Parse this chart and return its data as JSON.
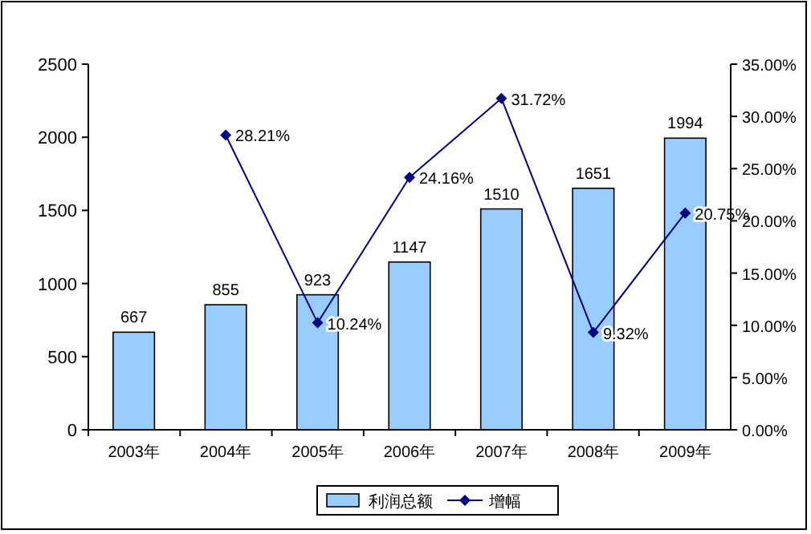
{
  "chart_data": {
    "type": "bar",
    "categories": [
      "2003年",
      "2004年",
      "2005年",
      "2006年",
      "2007年",
      "2008年",
      "2009年"
    ],
    "series": [
      {
        "name": "利润总额",
        "color": "#99ccff",
        "values": [
          667,
          855,
          923,
          1147,
          1510,
          1651,
          1994
        ],
        "value_labels": [
          "667",
          "855",
          "923",
          "1147",
          "1510",
          "1651",
          "1994"
        ]
      },
      {
        "name": "增幅",
        "type": "line",
        "axis": "y2",
        "color": "#000080",
        "marker": "diamond",
        "values": [
          null,
          28.21,
          10.24,
          24.16,
          31.72,
          9.32,
          20.75
        ],
        "value_labels": [
          null,
          "28.21%",
          "10.24%",
          "24.16%",
          "31.72%",
          "9.32%",
          "20.75%"
        ]
      }
    ],
    "ylim": [
      0,
      2500
    ],
    "yticks": [
      0,
      500,
      1000,
      1500,
      2000,
      2500
    ],
    "y2lim": [
      0,
      35
    ],
    "y2ticks": [
      {
        "value": 0,
        "label": "0.00%"
      },
      {
        "value": 5,
        "label": "5.00%"
      },
      {
        "value": 10,
        "label": "10.00%"
      },
      {
        "value": 15,
        "label": "15.00%"
      },
      {
        "value": 20,
        "label": "20.00%"
      },
      {
        "value": 25,
        "label": "25.00%"
      },
      {
        "value": 30,
        "label": "30.00%"
      },
      {
        "value": 35,
        "label": "35.00%"
      }
    ],
    "grid": false,
    "legend": "bottom"
  }
}
